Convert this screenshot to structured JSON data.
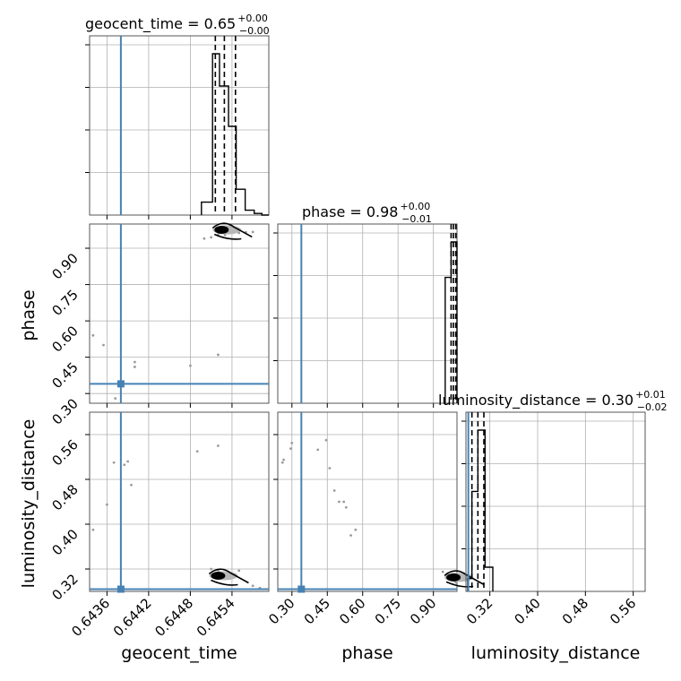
{
  "colors": {
    "truth": "#4682b4",
    "hist": "#000000",
    "grid": "#b0b0b0"
  },
  "chart_data": [
    {
      "type": "histogram",
      "panel": "geocent_time-1d",
      "title_main": "geocent_time = 0.65",
      "title_sup": "+0.00",
      "title_sub": "−0.00",
      "xlim": [
        0.64335,
        0.64593
      ],
      "bins": [
        [
          0.6453,
          0.64545
        ],
        [
          0.64545,
          0.6456
        ],
        [
          0.6456,
          0.64575
        ],
        [
          0.64575,
          0.6459
        ]
      ],
      "step_x": [
        0.64496,
        0.64512,
        0.64522,
        0.64535,
        0.64546,
        0.64559,
        0.64572,
        0.64583,
        0.64593
      ],
      "step_y": [
        0.08,
        1.0,
        0.8,
        0.55,
        0.16,
        0.03,
        0.01,
        0.0
      ],
      "quantiles": [
        0.64516,
        0.64529,
        0.64545
      ],
      "truth": 0.6438
    },
    {
      "type": "histogram",
      "panel": "phase-1d",
      "title_main": "phase = 0.98",
      "title_sup": "+0.00",
      "title_sub": "−0.01",
      "xlim": [
        0.24,
        1.0
      ],
      "step_x": [
        0.95,
        0.975,
        1.0
      ],
      "step_y": [
        0.78,
        1.0
      ],
      "quantiles": [
        0.975,
        0.985,
        0.995
      ],
      "truth": 0.34
    },
    {
      "type": "histogram",
      "panel": "luminosity_distance-1d",
      "title_main": "luminosity_distance = 0.30",
      "title_sup": "+0.01",
      "title_sub": "−0.02",
      "xlim": [
        0.28,
        0.58
      ],
      "step_x": [
        0.283,
        0.29,
        0.3,
        0.312,
        0.325
      ],
      "step_y": [
        0.08,
        0.62,
        1.0,
        0.15
      ],
      "quantiles": [
        0.29,
        0.3,
        0.31
      ],
      "truth": 0.284
    },
    {
      "type": "scatter",
      "panel": "geocent_time-phase",
      "x_param": "geocent_time",
      "y_param": "phase",
      "xlim": [
        0.64335,
        0.64593
      ],
      "ylim": [
        0.26,
        1.0
      ],
      "truth": [
        0.6438,
        0.34
      ],
      "points": [
        [
          0.6434,
          0.54
        ],
        [
          0.64355,
          0.5
        ],
        [
          0.64372,
          0.28
        ],
        [
          0.644,
          0.43
        ],
        [
          0.644,
          0.41
        ],
        [
          0.6448,
          0.415
        ],
        [
          0.6452,
          0.46
        ],
        [
          0.6452,
          0.956
        ],
        [
          0.6453,
          0.955
        ],
        [
          0.6451,
          0.945
        ],
        [
          0.645,
          0.94
        ],
        [
          0.6455,
          0.963
        ],
        [
          0.6456,
          0.966
        ],
        [
          0.6457,
          0.967
        ]
      ],
      "core": [
        0.64525,
        0.976
      ]
    },
    {
      "type": "scatter",
      "panel": "geocent_time-luminosity_distance",
      "x_param": "geocent_time",
      "y_param": "luminosity_distance",
      "xlim": [
        0.64335,
        0.64593
      ],
      "ylim": [
        0.28,
        0.6
      ],
      "truth": [
        0.6438,
        0.284
      ],
      "points": [
        [
          0.6434,
          0.39
        ],
        [
          0.6436,
          0.435
        ],
        [
          0.6437,
          0.51
        ],
        [
          0.64385,
          0.506
        ],
        [
          0.6439,
          0.512
        ],
        [
          0.64395,
          0.47
        ],
        [
          0.6449,
          0.53
        ],
        [
          0.6452,
          0.54
        ],
        [
          0.6451,
          0.32
        ],
        [
          0.6452,
          0.318
        ],
        [
          0.6455,
          0.317
        ],
        [
          0.6457,
          0.29
        ],
        [
          0.6458,
          0.286
        ]
      ],
      "core": [
        0.6452,
        0.308
      ]
    },
    {
      "type": "scatter",
      "panel": "phase-luminosity_distance",
      "x_param": "phase",
      "y_param": "luminosity_distance",
      "xlim": [
        0.24,
        1.0
      ],
      "ylim": [
        0.28,
        0.6
      ],
      "truth": [
        0.34,
        0.284
      ],
      "points": [
        [
          0.26,
          0.51
        ],
        [
          0.265,
          0.515
        ],
        [
          0.295,
          0.535
        ],
        [
          0.3,
          0.545
        ],
        [
          0.41,
          0.533
        ],
        [
          0.445,
          0.55
        ],
        [
          0.46,
          0.5
        ],
        [
          0.48,
          0.46
        ],
        [
          0.5,
          0.44
        ],
        [
          0.52,
          0.44
        ],
        [
          0.53,
          0.43
        ],
        [
          0.55,
          0.38
        ],
        [
          0.57,
          0.39
        ],
        [
          0.94,
          0.315
        ],
        [
          0.96,
          0.312
        ],
        [
          0.98,
          0.31
        ],
        [
          0.985,
          0.308
        ],
        [
          0.99,
          0.302
        ],
        [
          0.995,
          0.296
        ]
      ],
      "core": [
        0.985,
        0.305
      ]
    }
  ],
  "axes": {
    "x_bottom": [
      {
        "label": "geocent_time",
        "ticks": [
          "0.6436",
          "0.6442",
          "0.6448",
          "0.6454"
        ],
        "tick_values": [
          0.6436,
          0.6442,
          0.6448,
          0.6454
        ]
      },
      {
        "label": "phase",
        "ticks": [
          "0.30",
          "0.45",
          "0.60",
          "0.75",
          "0.90"
        ],
        "tick_values": [
          0.3,
          0.45,
          0.6,
          0.75,
          0.9
        ]
      },
      {
        "label": "luminosity_distance",
        "ticks": [
          "0.32",
          "0.40",
          "0.48",
          "0.56"
        ],
        "tick_values": [
          0.32,
          0.4,
          0.48,
          0.56
        ]
      }
    ],
    "y_left": [
      {
        "label": "phase",
        "ticks": [
          "0.30",
          "0.45",
          "0.60",
          "0.75",
          "0.90"
        ],
        "tick_values": [
          0.3,
          0.45,
          0.6,
          0.75,
          0.9
        ]
      },
      {
        "label": "luminosity_distance",
        "ticks": [
          "0.32",
          "0.40",
          "0.48",
          "0.56"
        ],
        "tick_values": [
          0.32,
          0.4,
          0.48,
          0.56
        ]
      }
    ]
  }
}
